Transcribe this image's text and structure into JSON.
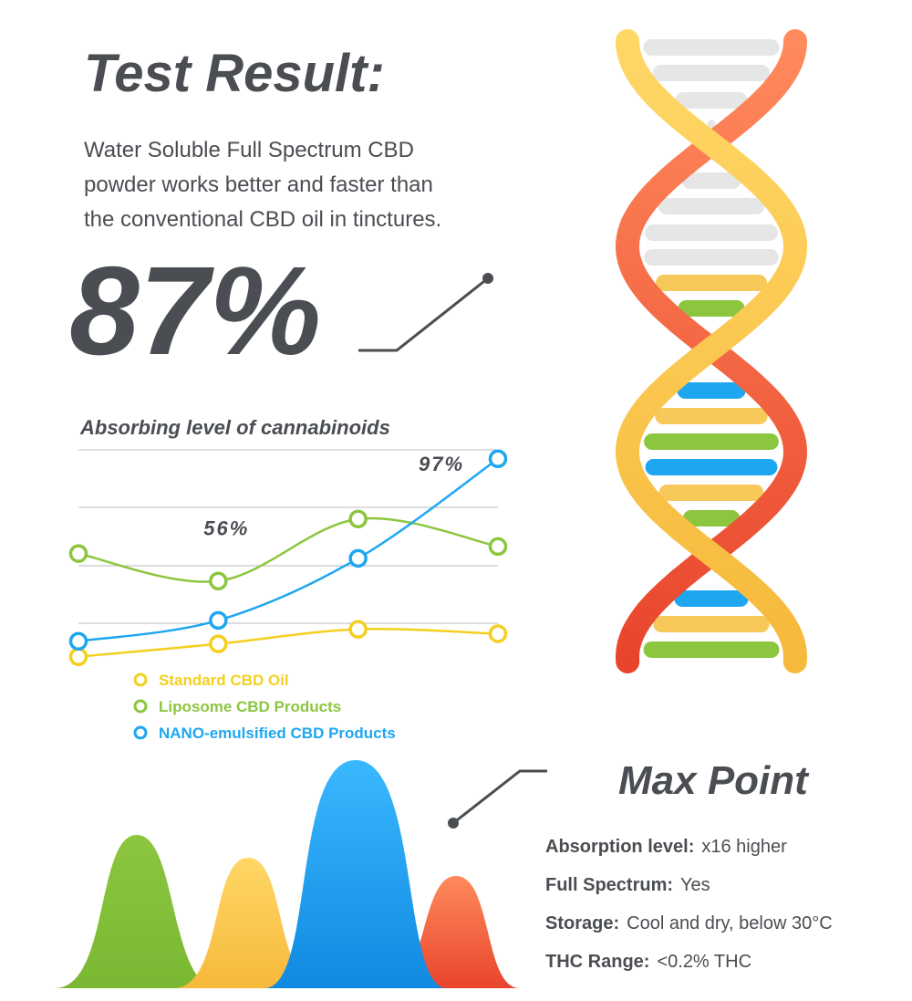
{
  "header": {
    "title": "Test Result:",
    "description": [
      "Water Soluble Full Spectrum CBD",
      "powder works better and faster than",
      "the conventional CBD oil in tinctures."
    ]
  },
  "highlight": {
    "value": "87%"
  },
  "chart_data": {
    "type": "line",
    "title": "Absorbing level of cannabinoids",
    "categories": [
      null,
      null,
      null,
      null
    ],
    "ylim": [
      25,
      100
    ],
    "series": [
      {
        "name": "Standard CBD Oil",
        "color": "#f5cf1f",
        "values": [
          30.6,
          34.9,
          39.8,
          38.3
        ],
        "value_labels": [
          null,
          null,
          null,
          null
        ]
      },
      {
        "name": "Liposome CBD Products",
        "color": "#8cc63f",
        "values": [
          65.2,
          56,
          76.8,
          67.6
        ],
        "value_labels": [
          null,
          "56%",
          null,
          null
        ]
      },
      {
        "name": "NANO-emulsified CBD Products",
        "color": "#1ea7f0",
        "values": [
          35.8,
          42.8,
          63.6,
          97
        ],
        "value_labels": [
          null,
          null,
          null,
          "97%"
        ]
      }
    ]
  },
  "max_point": {
    "title": "Max Point",
    "specs": [
      {
        "label": "Absorption level:",
        "value": "x16 higher"
      },
      {
        "label": "Full Spectrum:",
        "value": "Yes"
      },
      {
        "label": "Storage:",
        "value": "Cool and dry, below 30°C"
      },
      {
        "label": "THC Range:",
        "value": "<0.2% THC"
      }
    ]
  }
}
